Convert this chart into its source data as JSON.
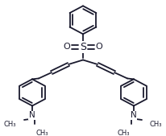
{
  "line_color": "#1a1a2e",
  "bg_color": "#ffffff",
  "line_width": 1.3,
  "figsize": [
    2.06,
    1.69
  ],
  "dpi": 100,
  "font_size": 7.5,
  "font_color": "#1a1a2e",
  "xlim": [
    0,
    206
  ],
  "ylim": [
    0,
    169
  ]
}
